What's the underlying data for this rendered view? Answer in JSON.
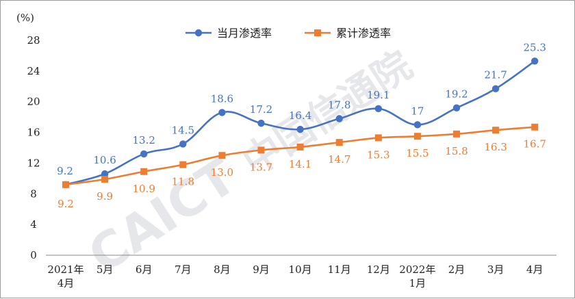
{
  "chart_data": {
    "type": "line",
    "unit_label": "(%)",
    "categories": [
      [
        "2021年",
        "4月"
      ],
      [
        "5月"
      ],
      [
        "6月"
      ],
      [
        "7月"
      ],
      [
        "8月"
      ],
      [
        "9月"
      ],
      [
        "10月"
      ],
      [
        "11月"
      ],
      [
        "12月"
      ],
      [
        "2022年",
        "1月"
      ],
      [
        "2月"
      ],
      [
        "3月"
      ],
      [
        "4月"
      ]
    ],
    "series": [
      {
        "name": "当月渗透率",
        "color": "#4472c4",
        "marker": "circle",
        "values": [
          9.2,
          10.6,
          13.2,
          14.5,
          18.6,
          17.2,
          16.4,
          17.8,
          19.1,
          17,
          19.2,
          21.7,
          25.3
        ],
        "labels": [
          "9.2",
          "10.6",
          "13.2",
          "14.5",
          "18.6",
          "17.2",
          "16.4",
          "17.8",
          "19.1",
          "17",
          "19.2",
          "21.7",
          "25.3"
        ]
      },
      {
        "name": "累计渗透率",
        "color": "#ed7d31",
        "marker": "square",
        "values": [
          9.2,
          9.9,
          10.9,
          11.8,
          13.0,
          13.7,
          14.1,
          14.7,
          15.3,
          15.5,
          15.8,
          16.3,
          16.7
        ],
        "labels": [
          "9.2",
          "9.9",
          "10.9",
          "11.8",
          "13.0",
          "13.7",
          "14.1",
          "14.7",
          "15.3",
          "15.5",
          "15.8",
          "16.3",
          "16.7"
        ]
      }
    ],
    "yticks": [
      "0",
      "4",
      "8",
      "12",
      "16",
      "20",
      "24",
      "28"
    ],
    "ylim": [
      0,
      28
    ],
    "grid": false,
    "legend_position": "top-center",
    "watermark": "CAICT 中国信通院"
  }
}
